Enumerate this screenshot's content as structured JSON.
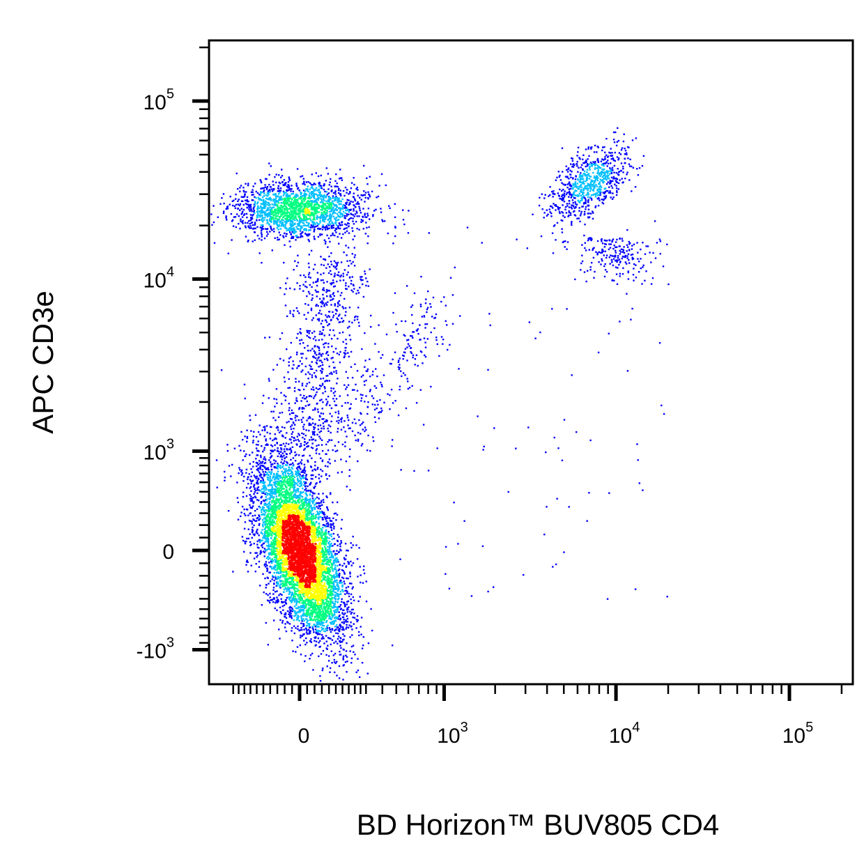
{
  "chart_data": {
    "type": "scatter",
    "style": "density-colored flow cytometry dot plot (biexponential axes)",
    "xlabel": "BD Horizon™ BUV805 CD4",
    "ylabel": "APC CD3e",
    "x_axis": {
      "scale": "biexponential",
      "range": [
        -300,
        200000
      ],
      "major_ticks": [
        {
          "value": 0,
          "label": "0"
        },
        {
          "value": 1000,
          "base": "10",
          "exp": "3"
        },
        {
          "value": 10000,
          "base": "10",
          "exp": "4"
        },
        {
          "value": 100000,
          "base": "10",
          "exp": "5"
        }
      ]
    },
    "y_axis": {
      "scale": "biexponential",
      "range": [
        -1000,
        200000
      ],
      "major_ticks": [
        {
          "value": -1000,
          "base": "-10",
          "exp": "3"
        },
        {
          "value": 0,
          "label": "0"
        },
        {
          "value": 1000,
          "base": "10",
          "exp": "3"
        },
        {
          "value": 10000,
          "base": "10",
          "exp": "4"
        },
        {
          "value": 100000,
          "base": "10",
          "exp": "5"
        }
      ]
    },
    "grid": false,
    "legend": "none",
    "density_colors": [
      "#0000ff",
      "#00bfff",
      "#00ff80",
      "#ffff00",
      "#ff0000"
    ],
    "populations": [
      {
        "id": "CD4-CD3-",
        "x_center": 0,
        "y_center": 0,
        "relative_size": "largest"
      },
      {
        "id": "CD4-CD3+",
        "x_center": 0,
        "y_center": 25000,
        "relative_size": "medium"
      },
      {
        "id": "CD4+CD3+",
        "x_center": 7000,
        "y_center": 35000,
        "relative_size": "small"
      }
    ]
  }
}
